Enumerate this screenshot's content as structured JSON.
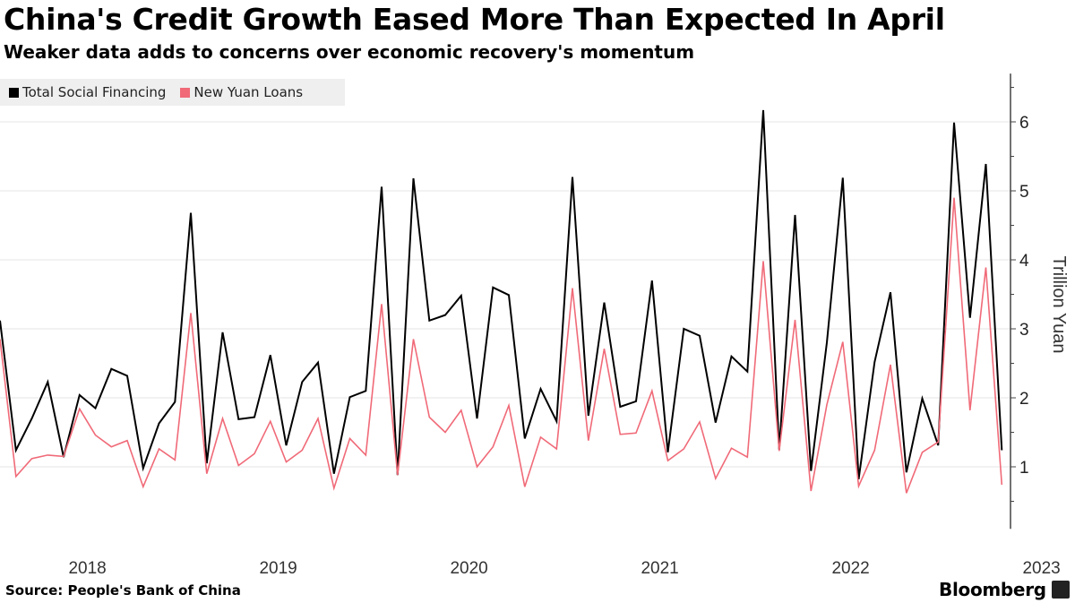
{
  "header": {
    "title": "China's Credit Growth Eased More Than Expected In April",
    "subtitle": "Weaker data adds to concerns over economic recovery's momentum"
  },
  "footer": {
    "source": "Source: People's Bank of China",
    "brand": "Bloomberg"
  },
  "chart_data": {
    "type": "line",
    "title": "China's Credit Growth Eased More Than Expected In April",
    "subtitle": "Weaker data adds to concerns over economic recovery's momentum",
    "ylabel": "Trillion Yuan",
    "ylim": [
      0.1,
      6.7
    ],
    "yticks": [
      1,
      2,
      3,
      4,
      5,
      6
    ],
    "y_axis_side": "right",
    "grid": true,
    "legend_position": "top-left",
    "x_start": "2018-01",
    "x_end": "2023-04",
    "x_frequency": "monthly",
    "xtick_labels": [
      "2018",
      "2019",
      "2020",
      "2021",
      "2022",
      "2023"
    ],
    "series": [
      {
        "name": "Total Social Financing",
        "color": "#000000",
        "values": [
          3.12,
          1.24,
          1.7,
          2.23,
          1.14,
          2.04,
          1.85,
          2.42,
          2.32,
          0.98,
          1.63,
          1.94,
          4.68,
          1.05,
          2.95,
          1.69,
          1.72,
          2.62,
          1.31,
          2.23,
          2.51,
          0.9,
          2.01,
          2.1,
          5.06,
          0.88,
          5.18,
          3.12,
          3.2,
          3.48,
          1.7,
          3.6,
          3.49,
          1.41,
          2.13,
          1.66,
          5.2,
          1.74,
          3.38,
          1.87,
          1.95,
          3.7,
          1.21,
          3.0,
          2.9,
          1.64,
          2.6,
          2.38,
          6.17,
          1.25,
          4.65,
          0.94,
          2.8,
          5.19,
          0.82,
          2.52,
          3.53,
          0.92,
          1.99,
          1.31,
          5.99,
          3.16,
          5.39,
          1.24
        ]
      },
      {
        "name": "New Yuan Loans",
        "color": "#f06a78",
        "values": [
          2.85,
          0.86,
          1.12,
          1.17,
          1.15,
          1.84,
          1.46,
          1.29,
          1.38,
          0.71,
          1.26,
          1.1,
          3.23,
          0.9,
          1.7,
          1.02,
          1.19,
          1.66,
          1.07,
          1.24,
          1.7,
          0.69,
          1.41,
          1.17,
          3.36,
          0.88,
          2.85,
          1.72,
          1.5,
          1.82,
          1.0,
          1.29,
          1.89,
          0.71,
          1.43,
          1.26,
          3.59,
          1.38,
          2.71,
          1.47,
          1.49,
          2.1,
          1.09,
          1.26,
          1.65,
          0.83,
          1.27,
          1.14,
          3.98,
          1.23,
          3.13,
          0.65,
          1.9,
          2.81,
          0.72,
          1.24,
          2.48,
          0.62,
          1.21,
          1.36,
          4.9,
          1.82,
          3.89,
          0.74
        ]
      }
    ]
  }
}
